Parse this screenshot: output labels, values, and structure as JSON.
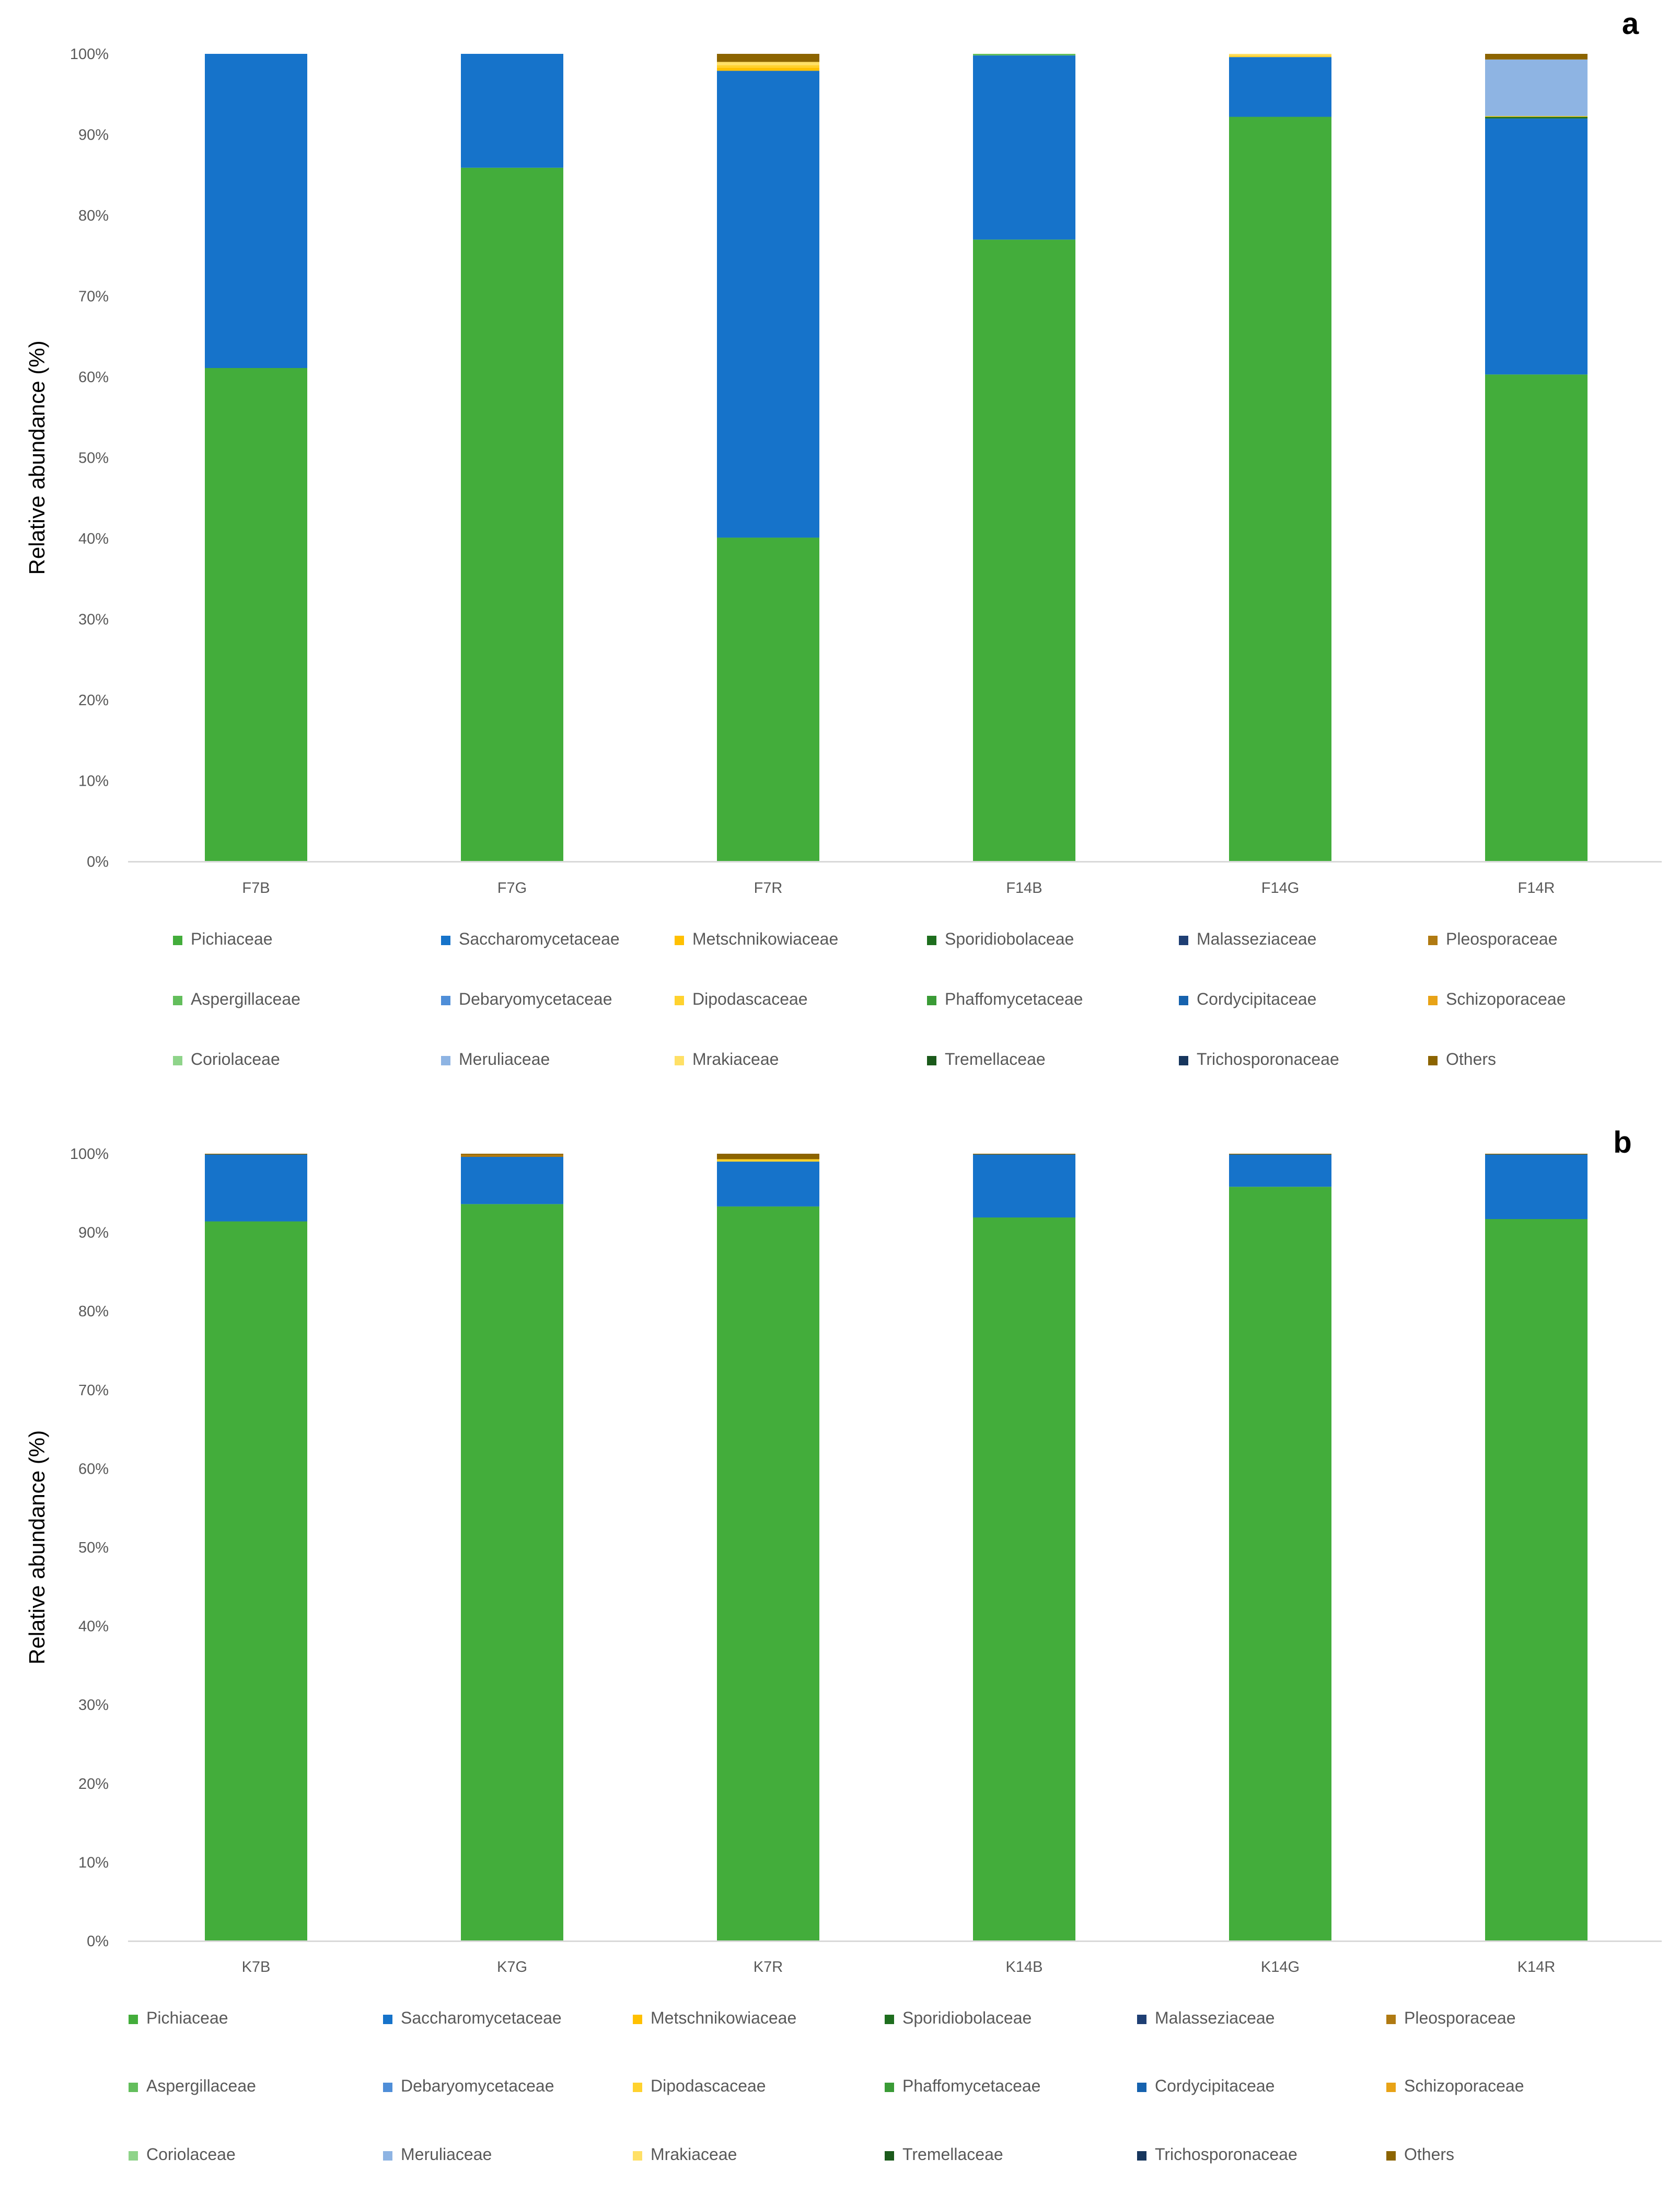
{
  "families": [
    "Pichiaceae",
    "Saccharomycetaceae",
    "Metschnikowiaceae",
    "Sporidiobolaceae",
    "Malasseziaceae",
    "Pleosporaceae",
    "Aspergillaceae",
    "Debaryomycetaceae",
    "Dipodascaceae",
    "Phaffomycetaceae",
    "Cordycipitaceae",
    "Schizoporaceae",
    "Coriolaceae",
    "Meruliaceae",
    "Mrakiaceae",
    "Tremellaceae",
    "Trichosporonaceae",
    "Others"
  ],
  "colors": {
    "Pichiaceae": "#43AD3B",
    "Saccharomycetaceae": "#1673CA",
    "Metschnikowiaceae": "#FFC000",
    "Sporidiobolaceae": "#1E6E1E",
    "Malasseziaceae": "#1F3F74",
    "Pleosporaceae": "#B07A12",
    "Aspergillaceae": "#63BE5C",
    "Debaryomycetaceae": "#4F8ED8",
    "Dipodascaceae": "#FFD22E",
    "Phaffomycetaceae": "#3A9B36",
    "Cordycipitaceae": "#1662AE",
    "Schizoporaceae": "#E8A317",
    "Coriolaceae": "#8FD48A",
    "Meruliaceae": "#8EB4E3",
    "Mrakiaceae": "#FFE066",
    "Tremellaceae": "#1B5A1B",
    "Trichosporonaceae": "#17365D",
    "Others": "#8C6400"
  },
  "chart_data": [
    {
      "type": "bar",
      "stacked": true,
      "panel_label": "a",
      "ylabel": "Relative abundance (%)",
      "ylim": [
        0,
        100
      ],
      "yticks": [
        "0%",
        "10%",
        "20%",
        "30%",
        "40%",
        "50%",
        "60%",
        "70%",
        "80%",
        "90%",
        "100%"
      ],
      "categories": [
        "F7B",
        "F7G",
        "F7R",
        "F14B",
        "F14G",
        "F14R"
      ],
      "legend_position": "bottom",
      "series": [
        {
          "name": "Pichiaceae",
          "values": [
            61.1,
            85.9,
            40.1,
            77.0,
            92.2,
            60.3
          ]
        },
        {
          "name": "Saccharomycetaceae",
          "values": [
            38.9,
            14.1,
            57.8,
            22.8,
            7.4,
            31.7
          ]
        },
        {
          "name": "Metschnikowiaceae",
          "values": [
            0,
            0,
            0.4,
            0,
            0,
            0
          ]
        },
        {
          "name": "Sporidiobolaceae",
          "values": [
            0,
            0,
            0,
            0,
            0,
            0.2
          ]
        },
        {
          "name": "Malasseziaceae",
          "values": [
            0,
            0,
            0,
            0,
            0,
            0
          ]
        },
        {
          "name": "Pleosporaceae",
          "values": [
            0,
            0,
            0,
            0,
            0,
            0
          ]
        },
        {
          "name": "Aspergillaceae",
          "values": [
            0,
            0,
            0,
            0.2,
            0,
            0
          ]
        },
        {
          "name": "Debaryomycetaceae",
          "values": [
            0,
            0,
            0,
            0,
            0,
            0
          ]
        },
        {
          "name": "Dipodascaceae",
          "values": [
            0,
            0,
            0.3,
            0,
            0.2,
            0.1
          ]
        },
        {
          "name": "Phaffomycetaceae",
          "values": [
            0,
            0,
            0,
            0,
            0,
            0
          ]
        },
        {
          "name": "Cordycipitaceae",
          "values": [
            0,
            0,
            0,
            0,
            0,
            0
          ]
        },
        {
          "name": "Schizoporaceae",
          "values": [
            0,
            0,
            0,
            0,
            0,
            0
          ]
        },
        {
          "name": "Coriolaceae",
          "values": [
            0,
            0,
            0,
            0,
            0,
            0
          ]
        },
        {
          "name": "Meruliaceae",
          "values": [
            0,
            0,
            0,
            0,
            0,
            7.0
          ]
        },
        {
          "name": "Mrakiaceae",
          "values": [
            0,
            0,
            0.4,
            0,
            0.2,
            0
          ]
        },
        {
          "name": "Tremellaceae",
          "values": [
            0,
            0,
            0,
            0,
            0,
            0
          ]
        },
        {
          "name": "Trichosporonaceae",
          "values": [
            0,
            0,
            0,
            0,
            0,
            0
          ]
        },
        {
          "name": "Others",
          "values": [
            0,
            0,
            1.0,
            0,
            0,
            0.7
          ]
        }
      ]
    },
    {
      "type": "bar",
      "stacked": true,
      "panel_label": "b",
      "ylabel": "Relative abundance (%)",
      "ylim": [
        0,
        100
      ],
      "yticks": [
        "0%",
        "10%",
        "20%",
        "30%",
        "40%",
        "50%",
        "60%",
        "70%",
        "80%",
        "90%",
        "100%"
      ],
      "categories": [
        "K7B",
        "K7G",
        "K7R",
        "K14B",
        "K14G",
        "K14R"
      ],
      "legend_position": "bottom",
      "series": [
        {
          "name": "Pichiaceae",
          "values": [
            91.4,
            93.6,
            93.3,
            91.9,
            95.8,
            91.7
          ]
        },
        {
          "name": "Saccharomycetaceae",
          "values": [
            8.5,
            6.0,
            5.7,
            8.0,
            4.1,
            8.2
          ]
        },
        {
          "name": "Metschnikowiaceae",
          "values": [
            0,
            0,
            0,
            0,
            0,
            0
          ]
        },
        {
          "name": "Sporidiobolaceae",
          "values": [
            0,
            0,
            0,
            0,
            0,
            0
          ]
        },
        {
          "name": "Malasseziaceae",
          "values": [
            0,
            0,
            0,
            0,
            0,
            0
          ]
        },
        {
          "name": "Pleosporaceae",
          "values": [
            0,
            0.3,
            0,
            0,
            0,
            0
          ]
        },
        {
          "name": "Aspergillaceae",
          "values": [
            0,
            0,
            0,
            0,
            0,
            0
          ]
        },
        {
          "name": "Debaryomycetaceae",
          "values": [
            0,
            0,
            0,
            0,
            0,
            0
          ]
        },
        {
          "name": "Dipodascaceae",
          "values": [
            0,
            0,
            0.3,
            0,
            0,
            0
          ]
        },
        {
          "name": "Phaffomycetaceae",
          "values": [
            0,
            0,
            0,
            0,
            0,
            0
          ]
        },
        {
          "name": "Cordycipitaceae",
          "values": [
            0,
            0,
            0,
            0,
            0,
            0
          ]
        },
        {
          "name": "Schizoporaceae",
          "values": [
            0,
            0,
            0,
            0,
            0,
            0
          ]
        },
        {
          "name": "Coriolaceae",
          "values": [
            0,
            0,
            0,
            0,
            0,
            0
          ]
        },
        {
          "name": "Meruliaceae",
          "values": [
            0,
            0,
            0,
            0,
            0,
            0
          ]
        },
        {
          "name": "Mrakiaceae",
          "values": [
            0,
            0,
            0,
            0,
            0,
            0
          ]
        },
        {
          "name": "Tremellaceae",
          "values": [
            0,
            0,
            0,
            0,
            0,
            0
          ]
        },
        {
          "name": "Trichosporonaceae",
          "values": [
            0,
            0,
            0,
            0,
            0,
            0
          ]
        },
        {
          "name": "Others",
          "values": [
            0.1,
            0.1,
            0.7,
            0.1,
            0.1,
            0.1
          ]
        }
      ]
    }
  ]
}
